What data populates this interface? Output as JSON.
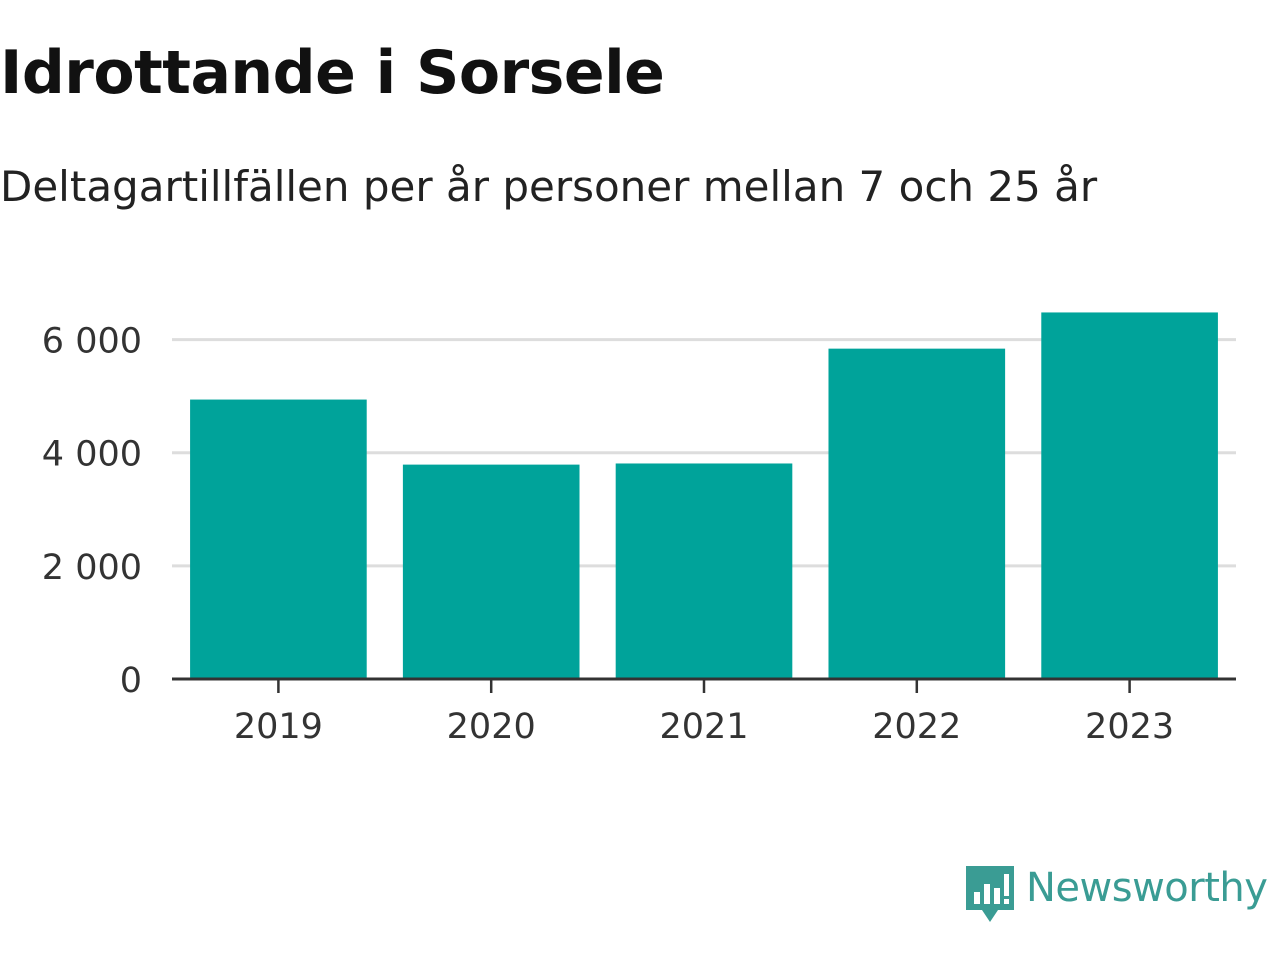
{
  "header": {
    "title": "Idrottande i Sorsele",
    "subtitle": "Deltagartillfällen per år personer mellan 7 och 25 år"
  },
  "chart_data": {
    "type": "bar",
    "title": "Idrottande i Sorsele",
    "subtitle": "Deltagartillfällen per år personer mellan 7 och 25 år",
    "xlabel": "",
    "ylabel": "",
    "categories": [
      "2019",
      "2020",
      "2021",
      "2022",
      "2023"
    ],
    "values": [
      4940,
      3790,
      3810,
      5840,
      6480
    ],
    "ylim": [
      0,
      6700
    ],
    "yticks": [
      0,
      2000,
      4000,
      6000
    ],
    "ytick_labels": [
      "0",
      "2 000",
      "4 000",
      "6 000"
    ],
    "grid": true,
    "legend": "none",
    "bar_color": "#00a39a"
  },
  "branding": {
    "name": "Newsworthy",
    "color": "#3a9c94",
    "icon": "newsworthy-logo-icon"
  }
}
